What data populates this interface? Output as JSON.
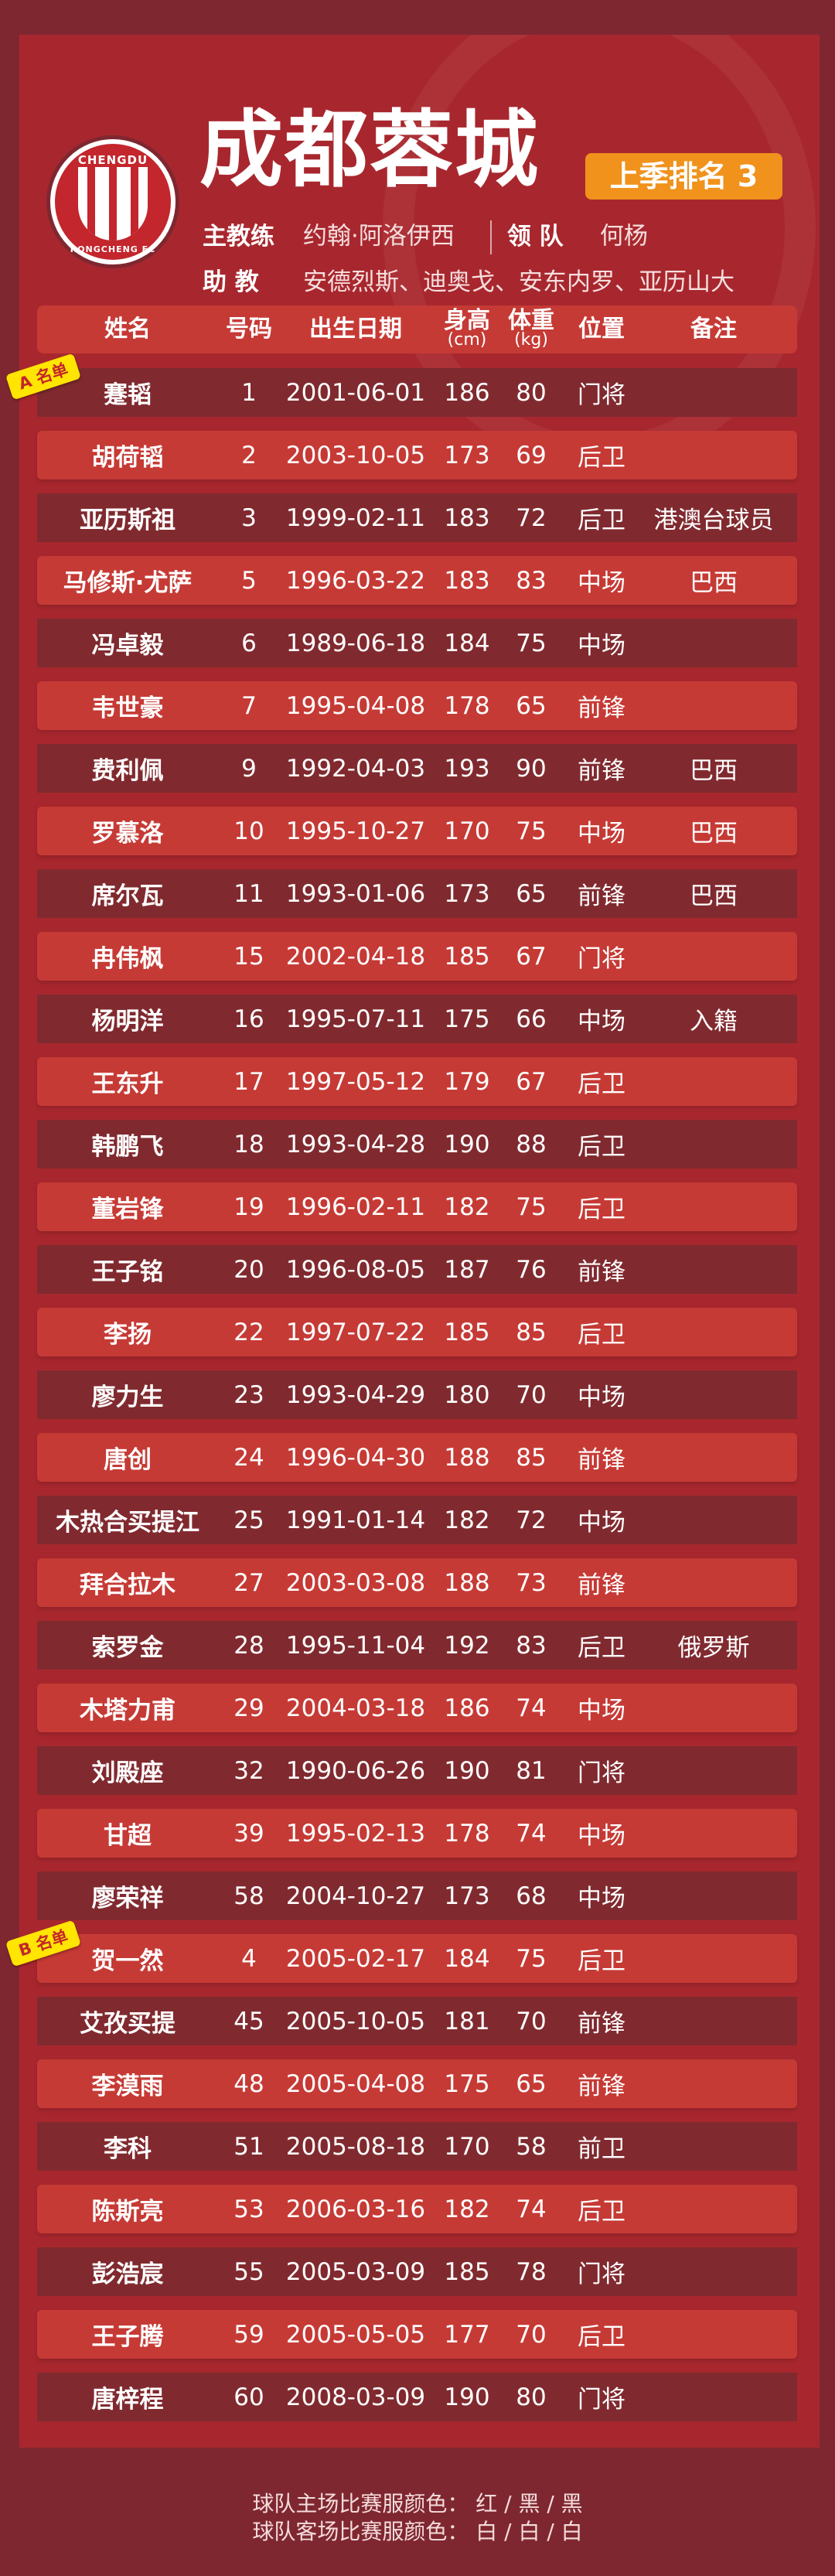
{
  "header": {
    "title": "成都蓉城",
    "rank_badge": "上季排名 3",
    "head_coach_label": "主教练",
    "head_coach": "约翰·阿洛伊西",
    "leader_label": "领 队",
    "leader": "何杨",
    "assistant_label": "助 教",
    "assistants": "安德烈斯、迪奥戈、安东内罗、亚历山大",
    "logo_text_top": "CHENGDU",
    "logo_text_bottom": "RONGCHENG FC"
  },
  "colors": {
    "background": "#7f2730",
    "panel": "#a8272e",
    "row_dark": "#802a2f",
    "row_light": "#c63a35",
    "badge": "#f0921c",
    "tag": "#ffe500"
  },
  "columns": {
    "name": "姓名",
    "number": "号码",
    "birth": "出生日期",
    "height": "身高",
    "height_unit": "(cm)",
    "weight": "体重",
    "weight_unit": "(kg)",
    "position": "位置",
    "remark": "备注"
  },
  "tags": {
    "a": "A 名单",
    "b": "B 名单"
  },
  "rows": [
    [
      "蹇韬",
      "1",
      "2001-06-01",
      "186",
      "80",
      "门将",
      ""
    ],
    [
      "胡荷韬",
      "2",
      "2003-10-05",
      "173",
      "69",
      "后卫",
      ""
    ],
    [
      "亚历斯祖",
      "3",
      "1999-02-11",
      "183",
      "72",
      "后卫",
      "港澳台球员"
    ],
    [
      "马修斯·尤萨",
      "5",
      "1996-03-22",
      "183",
      "83",
      "中场",
      "巴西"
    ],
    [
      "冯卓毅",
      "6",
      "1989-06-18",
      "184",
      "75",
      "中场",
      ""
    ],
    [
      "韦世豪",
      "7",
      "1995-04-08",
      "178",
      "65",
      "前锋",
      ""
    ],
    [
      "费利佩",
      "9",
      "1992-04-03",
      "193",
      "90",
      "前锋",
      "巴西"
    ],
    [
      "罗慕洛",
      "10",
      "1995-10-27",
      "170",
      "75",
      "中场",
      "巴西"
    ],
    [
      "席尔瓦",
      "11",
      "1993-01-06",
      "173",
      "65",
      "前锋",
      "巴西"
    ],
    [
      "冉伟枫",
      "15",
      "2002-04-18",
      "185",
      "67",
      "门将",
      ""
    ],
    [
      "杨明洋",
      "16",
      "1995-07-11",
      "175",
      "66",
      "中场",
      "入籍"
    ],
    [
      "王东升",
      "17",
      "1997-05-12",
      "179",
      "67",
      "后卫",
      ""
    ],
    [
      "韩鹏飞",
      "18",
      "1993-04-28",
      "190",
      "88",
      "后卫",
      ""
    ],
    [
      "董岩锋",
      "19",
      "1996-02-11",
      "182",
      "75",
      "后卫",
      ""
    ],
    [
      "王子铭",
      "20",
      "1996-08-05",
      "187",
      "76",
      "前锋",
      ""
    ],
    [
      "李扬",
      "22",
      "1997-07-22",
      "185",
      "85",
      "后卫",
      ""
    ],
    [
      "廖力生",
      "23",
      "1993-04-29",
      "180",
      "70",
      "中场",
      ""
    ],
    [
      "唐创",
      "24",
      "1996-04-30",
      "188",
      "85",
      "前锋",
      ""
    ],
    [
      "木热合买提江",
      "25",
      "1991-01-14",
      "182",
      "72",
      "中场",
      ""
    ],
    [
      "拜合拉木",
      "27",
      "2003-03-08",
      "188",
      "73",
      "前锋",
      ""
    ],
    [
      "索罗金",
      "28",
      "1995-11-04",
      "192",
      "83",
      "后卫",
      "俄罗斯"
    ],
    [
      "木塔力甫",
      "29",
      "2004-03-18",
      "186",
      "74",
      "中场",
      ""
    ],
    [
      "刘殿座",
      "32",
      "1990-06-26",
      "190",
      "81",
      "门将",
      ""
    ],
    [
      "甘超",
      "39",
      "1995-02-13",
      "178",
      "74",
      "中场",
      ""
    ],
    [
      "廖荣祥",
      "58",
      "2004-10-27",
      "173",
      "68",
      "中场",
      ""
    ],
    [
      "贺一然",
      "4",
      "2005-02-17",
      "184",
      "75",
      "后卫",
      ""
    ],
    [
      "艾孜买提",
      "45",
      "2005-10-05",
      "181",
      "70",
      "前锋",
      ""
    ],
    [
      "李漠雨",
      "48",
      "2005-04-08",
      "175",
      "65",
      "前锋",
      ""
    ],
    [
      "李科",
      "51",
      "2005-08-18",
      "170",
      "58",
      "前卫",
      ""
    ],
    [
      "陈斯亮",
      "53",
      "2006-03-16",
      "182",
      "74",
      "后卫",
      ""
    ],
    [
      "彭浩宸",
      "55",
      "2005-03-09",
      "185",
      "78",
      "门将",
      ""
    ],
    [
      "王子腾",
      "59",
      "2005-05-05",
      "177",
      "70",
      "后卫",
      ""
    ],
    [
      "唐梓程",
      "60",
      "2008-03-09",
      "190",
      "80",
      "门将",
      ""
    ]
  ],
  "footer": {
    "home_kit": "球队主场比赛服颜色：  红 / 黑 / 黑",
    "away_kit": "球队客场比赛服颜色：  白 / 白 / 白"
  }
}
